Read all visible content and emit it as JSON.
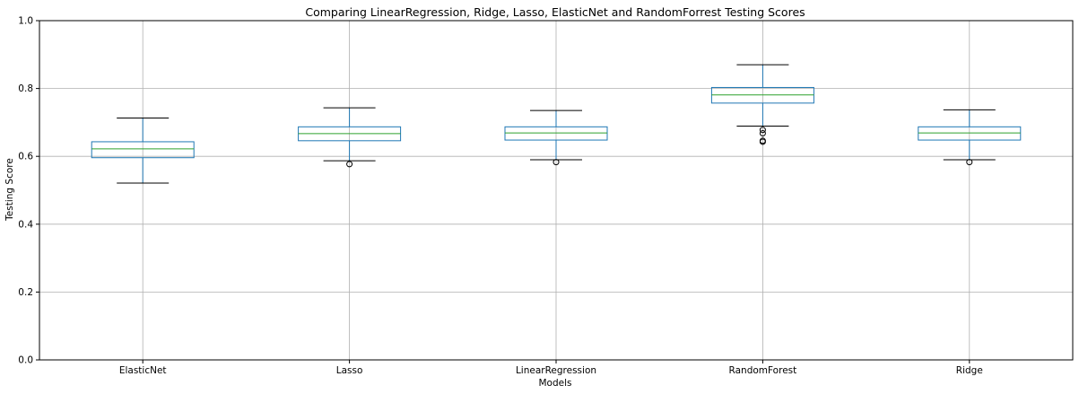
{
  "chart_data": {
    "type": "box",
    "title": "Comparing LinearRegression, Ridge, Lasso, ElasticNet and RandomForrest Testing Scores",
    "xlabel": "Models",
    "ylabel": "Testing Score",
    "ylim": [
      0.0,
      1.0
    ],
    "yticks": [
      "0.0",
      "0.2",
      "0.4",
      "0.6",
      "0.8",
      "1.0"
    ],
    "grid": true,
    "categories": [
      "ElasticNet",
      "Lasso",
      "LinearRegression",
      "RandomForest",
      "Ridge"
    ],
    "boxes": [
      {
        "category": "ElasticNet",
        "whisker_low": 0.521,
        "q1": 0.596,
        "median": 0.622,
        "q3": 0.643,
        "whisker_high": 0.713,
        "outliers": []
      },
      {
        "category": "Lasso",
        "whisker_low": 0.587,
        "q1": 0.646,
        "median": 0.667,
        "q3": 0.687,
        "whisker_high": 0.743,
        "outliers": [
          0.577
        ]
      },
      {
        "category": "LinearRegression",
        "whisker_low": 0.59,
        "q1": 0.648,
        "median": 0.669,
        "q3": 0.687,
        "whisker_high": 0.735,
        "outliers": [
          0.583
        ]
      },
      {
        "category": "RandomForest",
        "whisker_low": 0.689,
        "q1": 0.757,
        "median": 0.781,
        "q3": 0.803,
        "whisker_high": 0.87,
        "outliers": [
          0.678,
          0.668,
          0.646,
          0.643
        ]
      },
      {
        "category": "Ridge",
        "whisker_low": 0.59,
        "q1": 0.648,
        "median": 0.669,
        "q3": 0.687,
        "whisker_high": 0.737,
        "outliers": [
          0.583
        ]
      }
    ],
    "colors": {
      "box": "#1f77b4",
      "median": "#2ca02c",
      "whisker": "#1f77b4",
      "cap": "#000000",
      "outlier": "#000000",
      "grid": "#b0b0b0",
      "axis": "#000000"
    }
  }
}
